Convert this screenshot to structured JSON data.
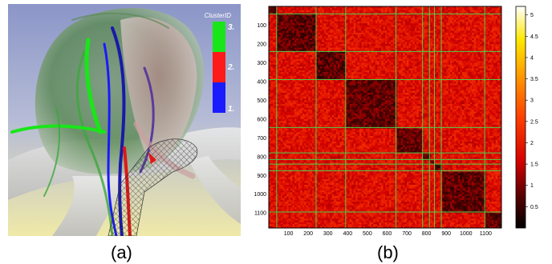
{
  "panel_a": {
    "legend_title": "ClusterID",
    "legend_labels": [
      "3.",
      "2.",
      "1."
    ],
    "legend_colors": [
      "#19e619",
      "#ff1a1a",
      "#1a1aff"
    ]
  },
  "panel_b": {
    "x_ticks": [
      "100",
      "200",
      "300",
      "400",
      "500",
      "600",
      "700",
      "800",
      "900",
      "1000",
      "1100"
    ],
    "y_ticks": [
      "100",
      "200",
      "300",
      "400",
      "500",
      "600",
      "700",
      "800",
      "900",
      "1000",
      "1100"
    ],
    "colorbar_ticks": [
      "5",
      "4.5",
      "4",
      "3.5",
      "3",
      "2.5",
      "2",
      "1.5",
      "1",
      "0.5"
    ],
    "grid_color": "#4cd04c"
  },
  "chart_data": {
    "type": "heatmap",
    "title": "",
    "xlabel": "",
    "ylabel": "",
    "xlim": [
      0,
      1180
    ],
    "ylim": [
      1180,
      0
    ],
    "colorbar_range": [
      0,
      5.2
    ],
    "cluster_boundaries": [
      40,
      240,
      390,
      645,
      780,
      815,
      840,
      875,
      1095
    ],
    "value_description_levels": {
      "within_cluster": 0.8,
      "between_cluster": 1.8
    }
  },
  "captions": {
    "a": "(a)",
    "b": "(b)"
  }
}
